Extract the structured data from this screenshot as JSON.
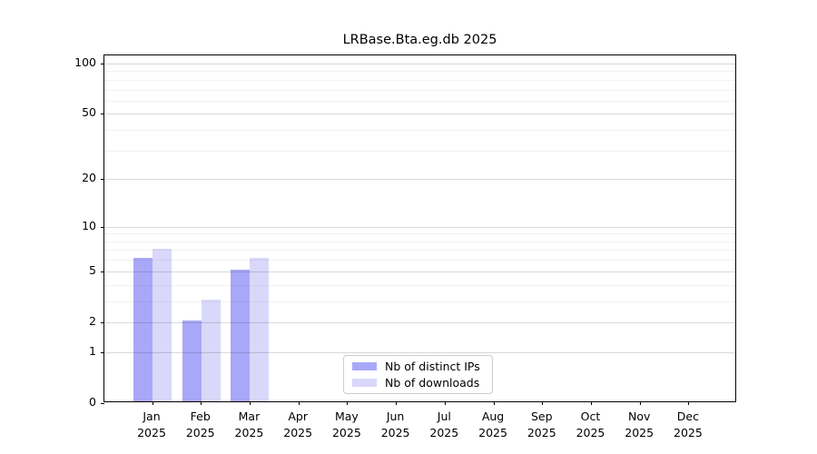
{
  "chart_data": {
    "type": "bar",
    "title": "LRBase.Bta.eg.db 2025",
    "categories": [
      "Jan",
      "Feb",
      "Mar",
      "Apr",
      "May",
      "Jun",
      "Jul",
      "Aug",
      "Sep",
      "Oct",
      "Nov",
      "Dec"
    ],
    "category_sublabel": "2025",
    "series": [
      {
        "name": "Nb of distinct IPs",
        "color": "#a9a8f8",
        "values": [
          6,
          2,
          5,
          0,
          0,
          0,
          0,
          0,
          0,
          0,
          0,
          0
        ]
      },
      {
        "name": "Nb of downloads",
        "color": "#d9d8fa",
        "values": [
          7,
          3,
          6,
          0,
          0,
          0,
          0,
          0,
          0,
          0,
          0,
          0
        ]
      }
    ],
    "yscale": "log1p",
    "ylim": [
      0,
      100
    ],
    "ytick_labels": [
      0,
      1,
      2,
      5,
      10,
      20,
      50,
      100
    ],
    "minor_gridlines": [
      3,
      4,
      6,
      7,
      8,
      9,
      30,
      40,
      60,
      70,
      80,
      90
    ],
    "grid": true,
    "legend_position": "lower center",
    "axis_color": "#000000",
    "major_grid_color": "rgba(0,0,0,0.15)",
    "minor_grid_color": "rgba(0,0,0,0.055)"
  }
}
